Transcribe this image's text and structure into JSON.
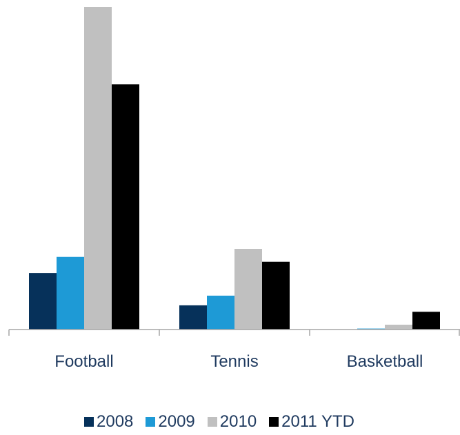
{
  "chart_data": {
    "type": "bar",
    "categories": [
      "Football",
      "Tennis",
      "Basketball"
    ],
    "series": [
      {
        "name": "2008",
        "color": "#06315a",
        "values": [
          17.5,
          7.5,
          0
        ]
      },
      {
        "name": "2009",
        "color": "#1e9ad6",
        "values": [
          22.5,
          10.5,
          0.3
        ]
      },
      {
        "name": "2010",
        "color": "#c0c0c0",
        "values": [
          100,
          25,
          1.5
        ]
      },
      {
        "name": "2011 YTD",
        "color": "#000000",
        "values": [
          76,
          21,
          5.5
        ]
      }
    ],
    "ylim": [
      0,
      100
    ],
    "grid": false,
    "legend_position": "bottom"
  }
}
